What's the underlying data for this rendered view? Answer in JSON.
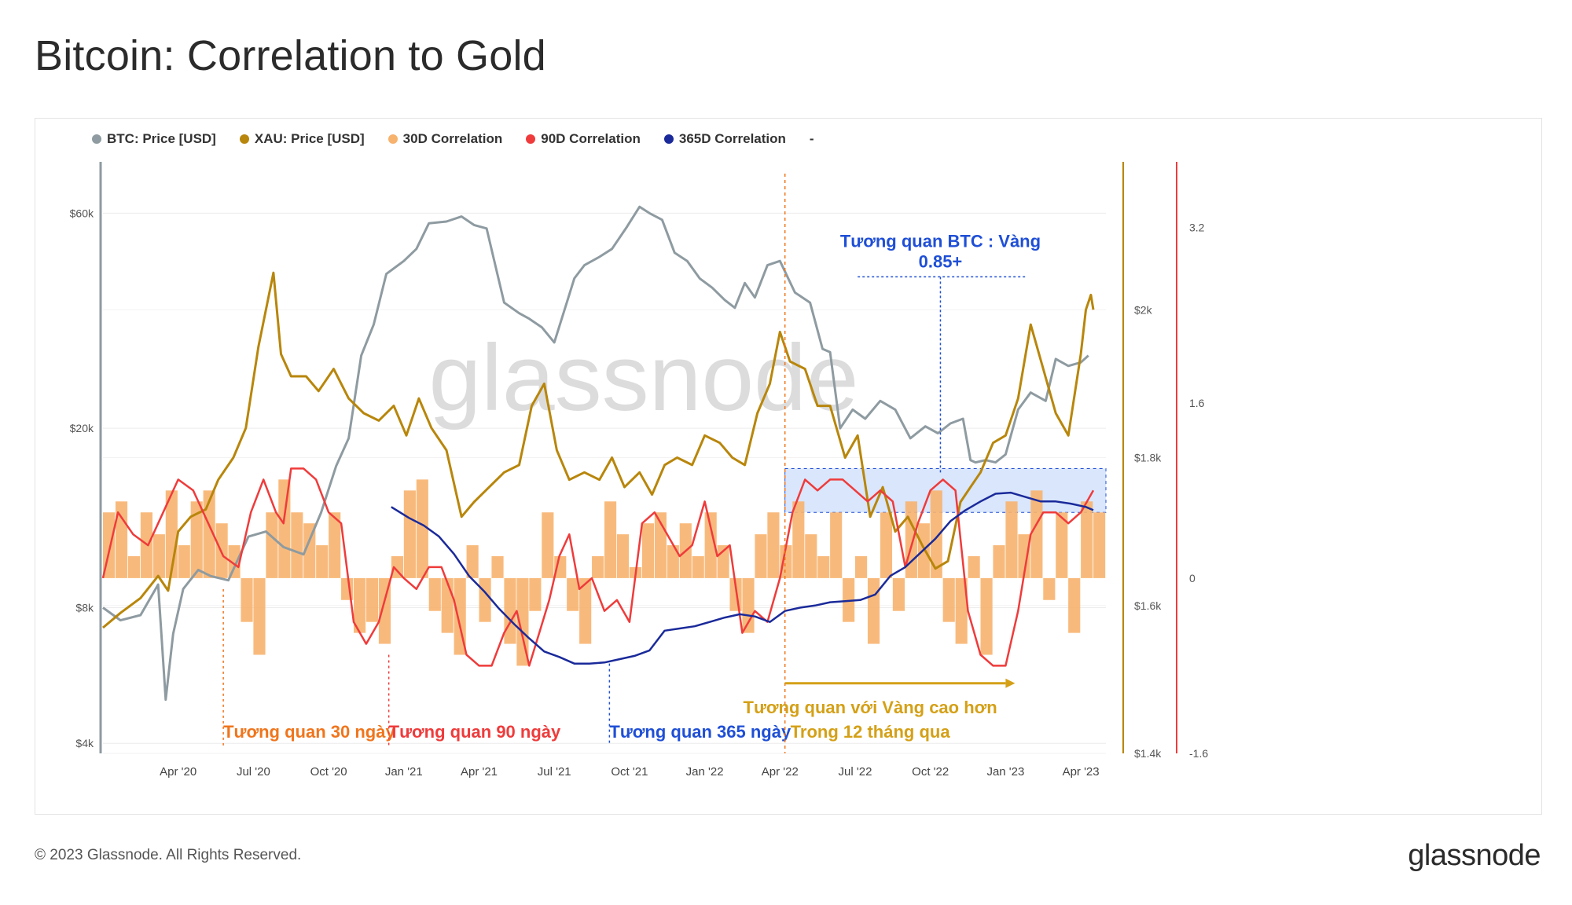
{
  "title": "Bitcoin: Correlation to Gold",
  "footer": {
    "copyright": "© 2023 Glassnode. All Rights Reserved.",
    "logo": "glassnode"
  },
  "colors": {
    "btc": "#8e9ba1",
    "xau": "#b8860b",
    "corr30": "#f7b26e",
    "corr90": "#ef3b3b",
    "corr365": "#1a2a9a",
    "annot30": "#f0751c",
    "annot90": "#ef3b3b",
    "annot365": "#1f4fd6",
    "annotGold": "#d4a017",
    "highlight": "#cfe0fb"
  },
  "chart_data": {
    "type": "line",
    "title": "Bitcoin: Correlation to Gold",
    "watermark": "glassnode",
    "legend": [
      {
        "key": "btc",
        "label": "BTC: Price [USD]"
      },
      {
        "key": "xau",
        "label": "XAU: Price [USD]"
      },
      {
        "key": "corr30",
        "label": "30D Correlation"
      },
      {
        "key": "corr90",
        "label": "90D Correlation"
      },
      {
        "key": "corr365",
        "label": "365D Correlation"
      },
      {
        "key": "extra",
        "label": "-"
      }
    ],
    "x_ticks": [
      "Apr '20",
      "Jul '20",
      "Oct '20",
      "Jan '21",
      "Apr '21",
      "Jul '21",
      "Oct '21",
      "Jan '22",
      "Apr '22",
      "Jul '22",
      "Oct '22",
      "Jan '23",
      "Apr '23"
    ],
    "x_tick_pos": [
      3,
      6,
      9,
      12,
      15,
      18,
      21,
      24,
      27,
      30,
      33,
      36,
      39
    ],
    "x_range": [
      0,
      40
    ],
    "btc_axis": {
      "scale": "log",
      "range": [
        3800,
        78000
      ],
      "ticks": [
        {
          "v": 4000,
          "label": "$4k"
        },
        {
          "v": 8000,
          "label": "$8k"
        },
        {
          "v": 20000,
          "label": "$20k"
        },
        {
          "v": 60000,
          "label": "$60k"
        }
      ]
    },
    "xau_axis": {
      "range": [
        1400,
        2200
      ],
      "ticks": [
        {
          "v": 1400,
          "label": "$1.4k"
        },
        {
          "v": 1600,
          "label": "$1.6k"
        },
        {
          "v": 1800,
          "label": "$1.8k"
        },
        {
          "v": 2000,
          "label": "$2k"
        }
      ]
    },
    "corr_axis": {
      "range": [
        -1.6,
        3.8
      ],
      "ticks": [
        {
          "v": -1.6,
          "label": "-1.6"
        },
        {
          "v": 0,
          "label": "0"
        },
        {
          "v": 1.6,
          "label": "1.6"
        },
        {
          "v": 3.2,
          "label": "3.2"
        }
      ]
    },
    "series": [
      {
        "name": "BTC: Price [USD]",
        "key": "btc",
        "x": [
          0,
          0.7,
          1.5,
          2.2,
          2.5,
          2.8,
          3.2,
          3.8,
          4.3,
          5,
          5.8,
          6.5,
          7.2,
          8,
          8.7,
          9.3,
          9.8,
          10.3,
          10.8,
          11.3,
          12,
          12.5,
          13,
          13.7,
          14.3,
          14.8,
          15.3,
          16,
          16.6,
          17,
          17.5,
          18,
          18.5,
          18.8,
          19.2,
          19.8,
          20.3,
          20.9,
          21.4,
          21.8,
          22.3,
          22.8,
          23.3,
          23.8,
          24.3,
          24.8,
          25.2,
          25.6,
          26,
          26.5,
          27,
          27.6,
          28.2,
          28.7,
          29,
          29.4,
          29.9,
          30.4,
          31,
          31.6,
          32.2,
          32.8,
          33.3,
          33.8,
          34.3,
          34.6,
          34.8,
          35.2,
          35.6,
          36,
          36.5,
          37,
          37.6,
          38,
          38.5,
          39,
          39.3
        ],
        "values": [
          8000,
          7500,
          7700,
          9000,
          5000,
          7000,
          8800,
          9700,
          9400,
          9200,
          11500,
          11800,
          10900,
          10500,
          13000,
          16500,
          19000,
          29000,
          34000,
          44000,
          47000,
          50000,
          57000,
          57500,
          59000,
          56500,
          55500,
          38000,
          36000,
          35000,
          33500,
          31000,
          38000,
          43000,
          46000,
          48000,
          50000,
          56000,
          62000,
          60000,
          58000,
          49000,
          47000,
          43000,
          41000,
          38500,
          37000,
          42000,
          39000,
          46000,
          47000,
          40000,
          38000,
          30000,
          29500,
          20000,
          22000,
          21000,
          23000,
          22000,
          19000,
          20200,
          19500,
          20500,
          21000,
          17000,
          16800,
          17000,
          16800,
          17500,
          22000,
          24000,
          23000,
          28500,
          27500,
          28000,
          29000
        ]
      },
      {
        "name": "XAU: Price [USD]",
        "key": "xau",
        "x": [
          0,
          0.7,
          1.5,
          2.2,
          2.6,
          3,
          3.5,
          4.1,
          4.6,
          5.2,
          5.7,
          6.2,
          6.8,
          7.1,
          7.5,
          8.1,
          8.6,
          9.2,
          9.8,
          10.4,
          11,
          11.6,
          12.1,
          12.6,
          13.1,
          13.7,
          14.3,
          14.8,
          15.4,
          16,
          16.6,
          17.1,
          17.6,
          18.1,
          18.6,
          19.2,
          19.8,
          20.3,
          20.8,
          21.4,
          21.9,
          22.4,
          22.9,
          23.5,
          24,
          24.6,
          25.1,
          25.6,
          26.1,
          26.6,
          27,
          27.4,
          28,
          28.5,
          29,
          29.6,
          30.1,
          30.6,
          31.1,
          31.6,
          32.1,
          32.7,
          33.2,
          33.7,
          34.2,
          34.6,
          35,
          35.5,
          36,
          36.5,
          37,
          37.5,
          38,
          38.5,
          39,
          39.2,
          39.4,
          39.5
        ],
        "values": [
          1570,
          1590,
          1610,
          1640,
          1620,
          1700,
          1720,
          1730,
          1770,
          1800,
          1840,
          1950,
          2050,
          1940,
          1910,
          1910,
          1890,
          1920,
          1880,
          1860,
          1850,
          1870,
          1830,
          1880,
          1840,
          1810,
          1720,
          1740,
          1760,
          1780,
          1790,
          1870,
          1900,
          1810,
          1770,
          1780,
          1770,
          1800,
          1760,
          1780,
          1750,
          1790,
          1800,
          1790,
          1830,
          1820,
          1800,
          1790,
          1860,
          1900,
          1970,
          1930,
          1920,
          1870,
          1870,
          1800,
          1830,
          1720,
          1760,
          1700,
          1720,
          1680,
          1650,
          1660,
          1740,
          1760,
          1780,
          1820,
          1830,
          1880,
          1980,
          1920,
          1860,
          1830,
          1940,
          2000,
          2020,
          2000
        ]
      },
      {
        "name": "30D Correlation",
        "key": "corr30",
        "x": [
          0,
          0.5,
          1,
          1.5,
          2,
          2.5,
          3,
          3.5,
          4,
          4.5,
          5,
          5.5,
          6,
          6.5,
          7,
          7.5,
          8,
          8.5,
          9,
          9.5,
          10,
          10.5,
          11,
          11.5,
          12,
          12.5,
          13,
          13.5,
          14,
          14.5,
          15,
          15.5,
          16,
          16.5,
          17,
          17.5,
          18,
          18.5,
          19,
          19.5,
          20,
          20.5,
          21,
          21.5,
          22,
          22.5,
          23,
          23.5,
          24,
          24.5,
          25,
          25.5,
          26,
          26.5,
          27,
          27.5,
          28,
          28.5,
          29,
          29.5,
          30,
          30.5,
          31,
          31.5,
          32,
          32.5,
          33,
          33.5,
          34,
          34.5,
          35,
          35.5,
          36,
          36.5,
          37,
          37.5,
          38,
          38.5,
          39,
          39.5
        ],
        "values": [
          0.6,
          0.7,
          0.2,
          0.6,
          0.4,
          0.8,
          0.3,
          0.7,
          0.8,
          0.5,
          0.3,
          -0.4,
          -0.7,
          0.6,
          0.9,
          0.6,
          0.5,
          0.3,
          0.6,
          -0.2,
          -0.5,
          -0.4,
          -0.6,
          0.2,
          0.8,
          0.9,
          -0.3,
          -0.5,
          -0.7,
          0.3,
          -0.4,
          0.2,
          -0.6,
          -0.8,
          -0.3,
          0.6,
          0.2,
          -0.3,
          -0.6,
          0.2,
          0.7,
          0.4,
          0.1,
          0.5,
          0.6,
          0.3,
          0.5,
          0.2,
          0.6,
          0.3,
          -0.3,
          -0.5,
          0.4,
          0.6,
          0.3,
          0.7,
          0.4,
          0.2,
          0.6,
          -0.4,
          0.2,
          -0.6,
          0.6,
          -0.3,
          0.7,
          0.5,
          0.8,
          -0.4,
          -0.6,
          0.2,
          -0.7,
          0.3,
          0.7,
          0.4,
          0.8,
          -0.2,
          0.6,
          -0.5,
          0.7,
          0.6
        ]
      },
      {
        "name": "90D Correlation",
        "key": "corr90",
        "x": [
          0,
          0.6,
          1.2,
          1.8,
          2.4,
          3,
          3.6,
          4.2,
          4.8,
          5.4,
          5.9,
          6.4,
          6.9,
          7.2,
          7.5,
          8,
          8.5,
          9,
          9.5,
          10,
          10.5,
          11,
          11.6,
          12,
          12.5,
          13,
          13.5,
          14,
          14.5,
          15,
          15.5,
          16,
          16.5,
          17,
          17.4,
          17.8,
          18.2,
          18.6,
          19,
          19.5,
          20,
          20.5,
          21,
          21.5,
          22,
          22.5,
          23,
          23.5,
          24,
          24.5,
          25,
          25.5,
          26,
          26.5,
          27,
          27.5,
          28,
          28.5,
          29,
          29.5,
          30,
          30.5,
          31,
          31.5,
          32,
          32.5,
          33,
          33.5,
          34,
          34.5,
          35,
          35.5,
          36,
          36.5,
          37,
          37.5,
          38,
          38.5,
          39,
          39.5
        ],
        "values": [
          0,
          0.6,
          0.4,
          0.3,
          0.6,
          0.9,
          0.8,
          0.5,
          0.2,
          0.1,
          0.6,
          0.9,
          0.6,
          0.5,
          1.0,
          1.0,
          0.9,
          0.6,
          0.5,
          -0.4,
          -0.6,
          -0.4,
          0.1,
          0.0,
          -0.1,
          0.1,
          0.1,
          -0.2,
          -0.7,
          -0.8,
          -0.8,
          -0.5,
          -0.3,
          -0.8,
          -0.5,
          -0.2,
          0.2,
          0.4,
          -0.1,
          0.0,
          -0.3,
          -0.2,
          -0.4,
          0.5,
          0.6,
          0.4,
          0.2,
          0.3,
          0.7,
          0.2,
          0.3,
          -0.5,
          -0.3,
          -0.4,
          0.0,
          0.6,
          0.9,
          0.8,
          0.9,
          0.9,
          0.8,
          0.7,
          0.8,
          0.7,
          0.1,
          0.5,
          0.8,
          0.9,
          0.8,
          -0.3,
          -0.7,
          -0.8,
          -0.8,
          -0.3,
          0.4,
          0.6,
          0.6,
          0.5,
          0.6,
          0.8
        ]
      },
      {
        "name": "365D Correlation",
        "key": "corr365",
        "x": [
          11.5,
          12.2,
          12.8,
          13.4,
          14,
          14.6,
          15.2,
          15.8,
          16.4,
          17,
          17.6,
          18.2,
          18.8,
          19.4,
          20,
          20.6,
          21.2,
          21.8,
          22.4,
          23,
          23.6,
          24.2,
          24.8,
          25.4,
          26,
          26.6,
          27.2,
          27.8,
          28.4,
          29,
          29.6,
          30.2,
          30.8,
          31.4,
          32,
          32.6,
          33.2,
          33.8,
          34.4,
          35,
          35.6,
          36.2,
          36.8,
          37.4,
          38,
          38.6,
          39.2,
          39.5
        ],
        "values": [
          0.65,
          0.55,
          0.48,
          0.38,
          0.22,
          0.02,
          -0.12,
          -0.28,
          -0.42,
          -0.55,
          -0.67,
          -0.72,
          -0.78,
          -0.78,
          -0.77,
          -0.74,
          -0.71,
          -0.66,
          -0.48,
          -0.46,
          -0.44,
          -0.4,
          -0.36,
          -0.33,
          -0.35,
          -0.4,
          -0.3,
          -0.27,
          -0.25,
          -0.22,
          -0.21,
          -0.2,
          -0.15,
          0.02,
          0.1,
          0.23,
          0.36,
          0.52,
          0.62,
          0.7,
          0.77,
          0.78,
          0.74,
          0.7,
          0.7,
          0.68,
          0.65,
          0.62
        ]
      }
    ],
    "annotations": [
      {
        "key": "a30",
        "text": "Tương quan 30 ngày",
        "x": 4.8
      },
      {
        "key": "a90",
        "text": "Tương quan 90 ngày",
        "x": 11.4
      },
      {
        "key": "a365",
        "text": "Tương quan 365 ngày",
        "x": 20.2
      },
      {
        "key": "agold1",
        "text": "Tương quan với Vàng cao hơn",
        "x": 27.2
      },
      {
        "key": "agold2",
        "text": "Trong 12 tháng qua",
        "x": 27.2
      },
      {
        "key": "abtc1",
        "text": "Tương quan BTC : Vàng",
        "x": 33.4
      },
      {
        "key": "abtc2",
        "text": "0.85+",
        "x": 33.4
      }
    ],
    "highlight": {
      "x0": 27.2,
      "x1": 40,
      "corr_lo": 0.6,
      "corr_hi": 1.0
    },
    "gold_window_start": 27.2
  }
}
